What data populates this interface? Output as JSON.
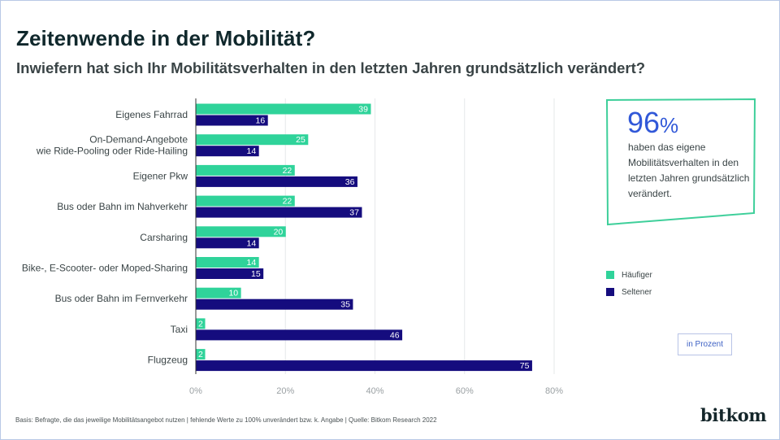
{
  "title": "Zeitenwende in der Mobilität?",
  "subtitle": "Inwiefern hat sich Ihr Mobilitätsverhalten in den letzten Jahren grundsätzlich verändert?",
  "callout": {
    "value": "96",
    "unit": "%",
    "text": "haben das eigene Mobilitätsverhalten in den letzten Jahren grundsätzlich verändert.",
    "border_color": "#3ecf9a",
    "value_color": "#3158d8"
  },
  "legend": [
    {
      "label": "Häufiger",
      "color": "#2fd39a"
    },
    {
      "label": "Seltener",
      "color": "#150c7e"
    }
  ],
  "unit_note": "in Prozent",
  "footnote": "Basis: Befragte, die das jeweilige Mobilitätsangebot nutzen | fehlende Werte zu 100% unverändert bzw. k. Angabe | Quelle: Bitkom Research 2022",
  "logo": "bitkom",
  "chart_data": {
    "type": "bar",
    "orientation": "horizontal",
    "title": "Zeitenwende in der Mobilität?",
    "subtitle": "Inwiefern hat sich Ihr Mobilitätsverhalten in den letzten Jahren grundsätzlich verändert?",
    "xlabel": "",
    "ylabel": "",
    "unit": "in Prozent",
    "xlim": [
      0,
      80
    ],
    "xticks": [
      0,
      20,
      40,
      60,
      80
    ],
    "xtick_labels": [
      "0%",
      "20%",
      "40%",
      "60%",
      "80%"
    ],
    "grid": true,
    "legend_position": "right",
    "categories": [
      [
        "Eigenes Fahrrad"
      ],
      [
        "On-Demand-Angebote",
        "wie Ride-Pooling oder Ride-Hailing"
      ],
      [
        "Eigener Pkw"
      ],
      [
        "Bus oder Bahn im Nahverkehr"
      ],
      [
        "Carsharing"
      ],
      [
        "Bike-, E-Scooter- oder Moped-Sharing"
      ],
      [
        "Bus oder Bahn im Fernverkehr"
      ],
      [
        "Taxi"
      ],
      [
        "Flugzeug"
      ]
    ],
    "series": [
      {
        "name": "Häufiger",
        "color": "#2fd39a",
        "values": [
          39,
          25,
          22,
          22,
          20,
          14,
          10,
          2,
          2
        ]
      },
      {
        "name": "Seltener",
        "color": "#150c7e",
        "values": [
          16,
          14,
          36,
          37,
          14,
          15,
          35,
          46,
          75
        ]
      }
    ]
  }
}
